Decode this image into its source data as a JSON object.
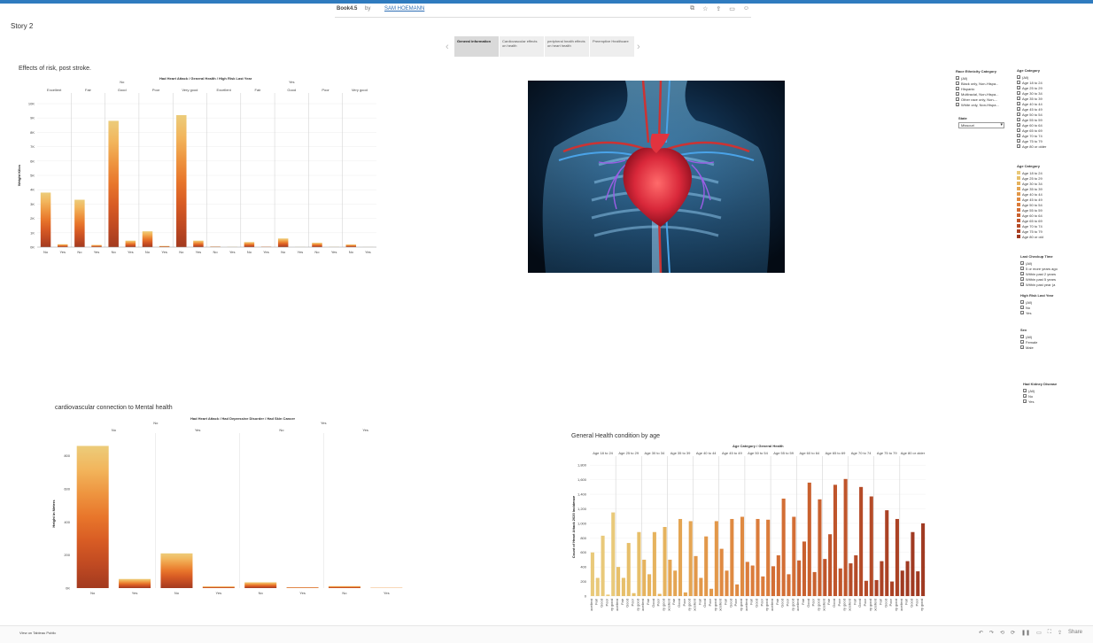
{
  "header": {
    "workbook": "Book4.5",
    "by": "by",
    "author": "SAM HOEMANN",
    "icons": [
      "copy-icon",
      "star-icon",
      "share-icon",
      "comment-icon",
      "user-icon"
    ]
  },
  "story_title": "Story 2",
  "story_points": [
    "General information",
    "Cardiovascular effects on health",
    "peripheral health effects on heart health",
    "Preemptive Healthcare"
  ],
  "charts_text": {
    "c1_title": "Effects of risk, post stroke.",
    "c1_head": "Had Heart Attack / General Health / High Risk Last Year",
    "c1_ylabel": "Weight Kilos",
    "c2_title": "cardiovascular connection to Mental health",
    "c2_head": "Had Heart Attack / Had Depressive Disorder / Had Skin Cancer",
    "c2_ylabel": "Height in Meters",
    "c3_title": "General Health condition by age",
    "c3_head": "Age Category / General Health",
    "c3_ylabel": "Count of Heart Attack 2020 Incidence"
  },
  "chart_data": [
    {
      "type": "bar",
      "title": "Effects of risk, post stroke.",
      "ylabel": "Weight Kilos",
      "ylim": [
        0,
        10000
      ],
      "y_ticks": [
        "0K",
        "1K",
        "2K",
        "3K",
        "4K",
        "5K",
        "6K",
        "7K",
        "8K",
        "9K",
        "10K"
      ],
      "level1": [
        {
          "label": "No",
          "span": 10
        },
        {
          "label": "Yes",
          "span": 10
        }
      ],
      "level2": [
        {
          "label": "Excellent",
          "span": 2
        },
        {
          "label": "Fair",
          "span": 2
        },
        {
          "label": "Good",
          "span": 2
        },
        {
          "label": "Poor",
          "span": 2
        },
        {
          "label": "Very good",
          "span": 2
        },
        {
          "label": "Excellent",
          "span": 2
        },
        {
          "label": "Fair",
          "span": 2
        },
        {
          "label": "Good",
          "span": 2
        },
        {
          "label": "Poor",
          "span": 2
        },
        {
          "label": "Very good",
          "span": 2
        }
      ],
      "categories": [
        "No",
        "Yes",
        "No",
        "Yes",
        "No",
        "Yes",
        "No",
        "Yes",
        "No",
        "Yes",
        "No",
        "Yes",
        "No",
        "Yes",
        "No",
        "Yes",
        "No",
        "Yes",
        "No",
        "Yes"
      ],
      "values": [
        3800,
        200,
        3300,
        150,
        8800,
        450,
        1100,
        80,
        9200,
        450,
        40,
        15,
        350,
        30,
        600,
        10,
        300,
        15,
        180,
        5
      ]
    },
    {
      "type": "bar",
      "title": "cardiovascular connection to Mental health",
      "ylabel": "Height in Meters",
      "ylim": [
        0,
        900
      ],
      "y_ticks": [
        "0K",
        "200",
        "400",
        "600",
        "800"
      ],
      "y_tick_values": [
        0,
        200,
        400,
        600,
        800
      ],
      "level1": [
        {
          "label": "No",
          "span": 4
        },
        {
          "label": "Yes",
          "span": 4
        }
      ],
      "level2": [
        {
          "label": "No",
          "span": 2
        },
        {
          "label": "Yes",
          "span": 2
        },
        {
          "label": "No",
          "span": 2
        },
        {
          "label": "Yes",
          "span": 2
        }
      ],
      "categories": [
        "No",
        "Yes",
        "No",
        "Yes",
        "No",
        "Yes",
        "No",
        "Yes"
      ],
      "values": [
        860,
        55,
        210,
        10,
        35,
        5,
        12,
        2
      ]
    },
    {
      "type": "bar",
      "title": "General Health condition by age",
      "ylabel": "Count of Heart Attack 2020 Incidence",
      "ylim": [
        0,
        1900
      ],
      "y_ticks": [
        "0",
        "200",
        "400",
        "600",
        "800",
        "1,000",
        "1,200",
        "1,400",
        "1,600",
        "1,800"
      ],
      "y_tick_values": [
        0,
        200,
        400,
        600,
        800,
        1000,
        1200,
        1400,
        1600,
        1800
      ],
      "groups": [
        "Age 18 to 24",
        "Age 25 to 29",
        "Age 30 to 34",
        "Age 35 to 39",
        "Age 40 to 44",
        "Age 45 to 49",
        "Age 50 to 54",
        "Age 55 to 59",
        "Age 60 to 64",
        "Age 65 to 69",
        "Age 70 to 74",
        "Age 75 to 79",
        "Age 80 or older"
      ],
      "colors": [
        "#e9c97a",
        "#e7bf6a",
        "#e6b35e",
        "#e4a553",
        "#e2984a",
        "#df8a42",
        "#db7c3b",
        "#d36e35",
        "#c9612f",
        "#bf552b",
        "#b54b28",
        "#ab4225",
        "#a03a22"
      ],
      "sub_categories": [
        "Excellent",
        "Fair",
        "Good",
        "Poor",
        "Very good"
      ],
      "values": [
        [
          600,
          250,
          830,
          20,
          1150
        ],
        [
          400,
          250,
          730,
          40,
          880
        ],
        [
          500,
          300,
          880,
          30,
          950
        ],
        [
          500,
          350,
          1060,
          50,
          1030
        ],
        [
          550,
          250,
          820,
          100,
          1030
        ],
        [
          650,
          350,
          1060,
          160,
          1090
        ],
        [
          470,
          420,
          1060,
          270,
          1050
        ],
        [
          410,
          560,
          1340,
          300,
          1090
        ],
        [
          490,
          750,
          1560,
          330,
          1330
        ],
        [
          510,
          850,
          1530,
          380,
          1610
        ],
        [
          450,
          560,
          1500,
          210,
          1370
        ],
        [
          220,
          480,
          1180,
          200,
          1060
        ],
        [
          350,
          480,
          880,
          340,
          1000
        ]
      ]
    }
  ],
  "filters": {
    "race": {
      "title": "Race Ethnicity Category",
      "items": [
        "(All)",
        "Black only, Non-Hispa...",
        "Hispanic",
        "Multiracial, Non-Hispa...",
        "Other race only, Non-...",
        "White only, Non-Hispa..."
      ]
    },
    "state": {
      "title": "State",
      "value": "Missouri"
    },
    "age": {
      "title": "Age Category",
      "items": [
        "(All)",
        "Age 18 to 24",
        "Age 25 to 29",
        "Age 30 to 34",
        "Age 35 to 39",
        "Age 40 to 44",
        "Age 45 to 49",
        "Age 50 to 54",
        "Age 55 to 59",
        "Age 60 to 64",
        "Age 65 to 69",
        "Age 70 to 74",
        "Age 75 to 79",
        "Age 80 or older"
      ]
    },
    "age_legend": {
      "title": "Age Category",
      "items": [
        "Age 18 to 24",
        "Age 25 to 29",
        "Age 30 to 34",
        "Age 35 to 39",
        "Age 40 to 44",
        "Age 45 to 49",
        "Age 50 to 54",
        "Age 55 to 59",
        "Age 60 to 64",
        "Age 65 to 69",
        "Age 70 to 74",
        "Age 75 to 79",
        "Age 80 or old"
      ]
    },
    "checkup": {
      "title": "Last Checkup Time",
      "items": [
        "(All)",
        "5 or more years ago",
        "Within past 2 years",
        "Within past 5 years",
        "Within past year (a"
      ]
    },
    "risk": {
      "title": "High Risk Last Year",
      "items": [
        "(All)",
        "No",
        "Yes"
      ]
    },
    "sex": {
      "title": "Sex",
      "items": [
        "(All)",
        "Female",
        "Male"
      ]
    },
    "kidney": {
      "title": "Had Kidney Disease",
      "items": [
        "(All)",
        "No",
        "Yes"
      ]
    }
  },
  "footer": {
    "view_on": "View on Tableau Public",
    "share": "Share"
  }
}
